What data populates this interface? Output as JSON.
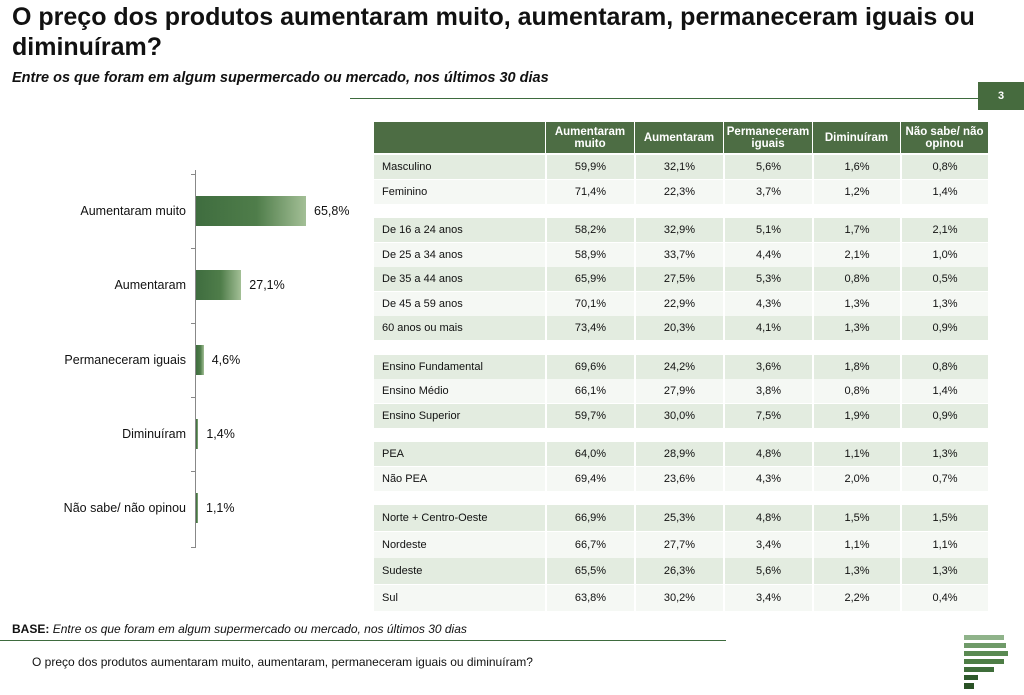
{
  "header": {
    "title": "O preço dos produtos aumentaram muito, aumentaram, permaneceram iguais ou diminuíram?",
    "subtitle": "Entre os que foram em algum supermercado ou mercado, nos últimos 30 dias",
    "page_number": "3"
  },
  "chart_data": {
    "type": "bar",
    "orientation": "horizontal",
    "categories": [
      "Aumentaram muito",
      "Aumentaram",
      "Permaneceram iguais",
      "Diminuíram",
      "Não sabe/ não opinou"
    ],
    "values": [
      65.8,
      27.1,
      4.6,
      1.4,
      1.1
    ],
    "value_labels": [
      "65,8%",
      "27,1%",
      "4,6%",
      "1,4%",
      "1,1%"
    ],
    "grid": false
  },
  "table": {
    "headers": [
      "",
      "Aumentaram muito",
      "Aumentaram",
      "Permaneceram iguais",
      "Diminuíram",
      "Não sabe/ não opinou"
    ],
    "groups": [
      [
        [
          "Masculino",
          "59,9%",
          "32,1%",
          "5,6%",
          "1,6%",
          "0,8%"
        ],
        [
          "Feminino",
          "71,4%",
          "22,3%",
          "3,7%",
          "1,2%",
          "1,4%"
        ]
      ],
      [
        [
          "De 16 a 24 anos",
          "58,2%",
          "32,9%",
          "5,1%",
          "1,7%",
          "2,1%"
        ],
        [
          "De 25 a 34 anos",
          "58,9%",
          "33,7%",
          "4,4%",
          "2,1%",
          "1,0%"
        ],
        [
          "De 35 a 44 anos",
          "65,9%",
          "27,5%",
          "5,3%",
          "0,8%",
          "0,5%"
        ],
        [
          "De 45 a 59 anos",
          "70,1%",
          "22,9%",
          "4,3%",
          "1,3%",
          "1,3%"
        ],
        [
          "60 anos ou mais",
          "73,4%",
          "20,3%",
          "4,1%",
          "1,3%",
          "0,9%"
        ]
      ],
      [
        [
          "Ensino Fundamental",
          "69,6%",
          "24,2%",
          "3,6%",
          "1,8%",
          "0,8%"
        ],
        [
          "Ensino Médio",
          "66,1%",
          "27,9%",
          "3,8%",
          "0,8%",
          "1,4%"
        ],
        [
          "Ensino Superior",
          "59,7%",
          "30,0%",
          "7,5%",
          "1,9%",
          "0,9%"
        ]
      ],
      [
        [
          "PEA",
          "64,0%",
          "28,9%",
          "4,8%",
          "1,1%",
          "1,3%"
        ],
        [
          "Não PEA",
          "69,4%",
          "23,6%",
          "4,3%",
          "2,0%",
          "0,7%"
        ]
      ],
      [
        [
          "Norte + Centro-Oeste",
          "66,9%",
          "25,3%",
          "4,8%",
          "1,5%",
          "1,5%"
        ],
        [
          "Nordeste",
          "66,7%",
          "27,7%",
          "3,4%",
          "1,1%",
          "1,1%"
        ],
        [
          "Sudeste",
          "65,5%",
          "26,3%",
          "5,6%",
          "1,3%",
          "1,3%"
        ],
        [
          "Sul",
          "63,8%",
          "30,2%",
          "3,4%",
          "2,2%",
          "0,4%"
        ]
      ]
    ]
  },
  "base": {
    "label": "BASE:",
    "text": "Entre os que foram em algum supermercado ou mercado, nos últimos 30 dias"
  },
  "footer": {
    "question": "O preço dos produtos aumentaram muito, aumentaram, permaneceram iguais ou diminuíram?"
  },
  "colors": {
    "accent": "#4d6d44",
    "row_shade": "#e3ece0"
  }
}
